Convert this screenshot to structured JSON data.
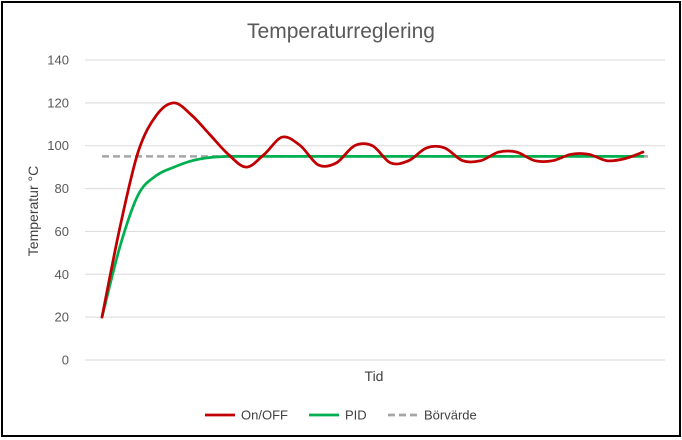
{
  "chart_data": {
    "type": "line",
    "title": "Temperaturreglering",
    "xlabel": "Tid",
    "ylabel": "Temperatur °C",
    "ylim": [
      0,
      140
    ],
    "yticks": [
      0,
      20,
      40,
      60,
      80,
      100,
      120,
      140
    ],
    "grid": true,
    "legend_position": "bottom",
    "x": [
      0,
      1,
      2,
      3,
      4,
      5,
      6,
      7,
      8,
      9,
      10,
      11,
      12,
      13,
      14,
      15,
      16,
      17,
      18,
      19,
      20,
      21,
      22,
      23,
      24,
      25,
      26,
      27,
      28,
      29,
      30
    ],
    "series": [
      {
        "name": "On/OFF",
        "color": "#c00000",
        "style": "solid",
        "values": [
          20,
          62,
          97,
          114,
          120,
          114,
          105,
          96,
          90,
          96,
          104,
          100,
          91,
          92,
          100,
          100,
          92,
          93,
          99,
          99,
          93,
          93,
          97,
          97,
          93,
          93,
          96,
          96,
          93,
          94,
          97
        ]
      },
      {
        "name": "PID",
        "color": "#00b050",
        "style": "solid",
        "values": [
          20,
          53,
          77,
          86,
          90,
          93,
          94.5,
          95,
          95,
          95,
          95,
          95,
          95,
          95,
          95,
          95,
          95,
          95,
          95,
          95,
          95,
          95,
          95,
          95,
          95,
          95,
          95,
          95,
          95,
          95,
          95
        ]
      },
      {
        "name": "Börvärde",
        "color": "#a6a6a6",
        "style": "dashed",
        "values": [
          95,
          95,
          95,
          95,
          95,
          95,
          95,
          95,
          95,
          95,
          95,
          95,
          95,
          95,
          95,
          95,
          95,
          95,
          95,
          95,
          95,
          95,
          95,
          95,
          95,
          95,
          95,
          95,
          95,
          95,
          95
        ]
      }
    ]
  }
}
